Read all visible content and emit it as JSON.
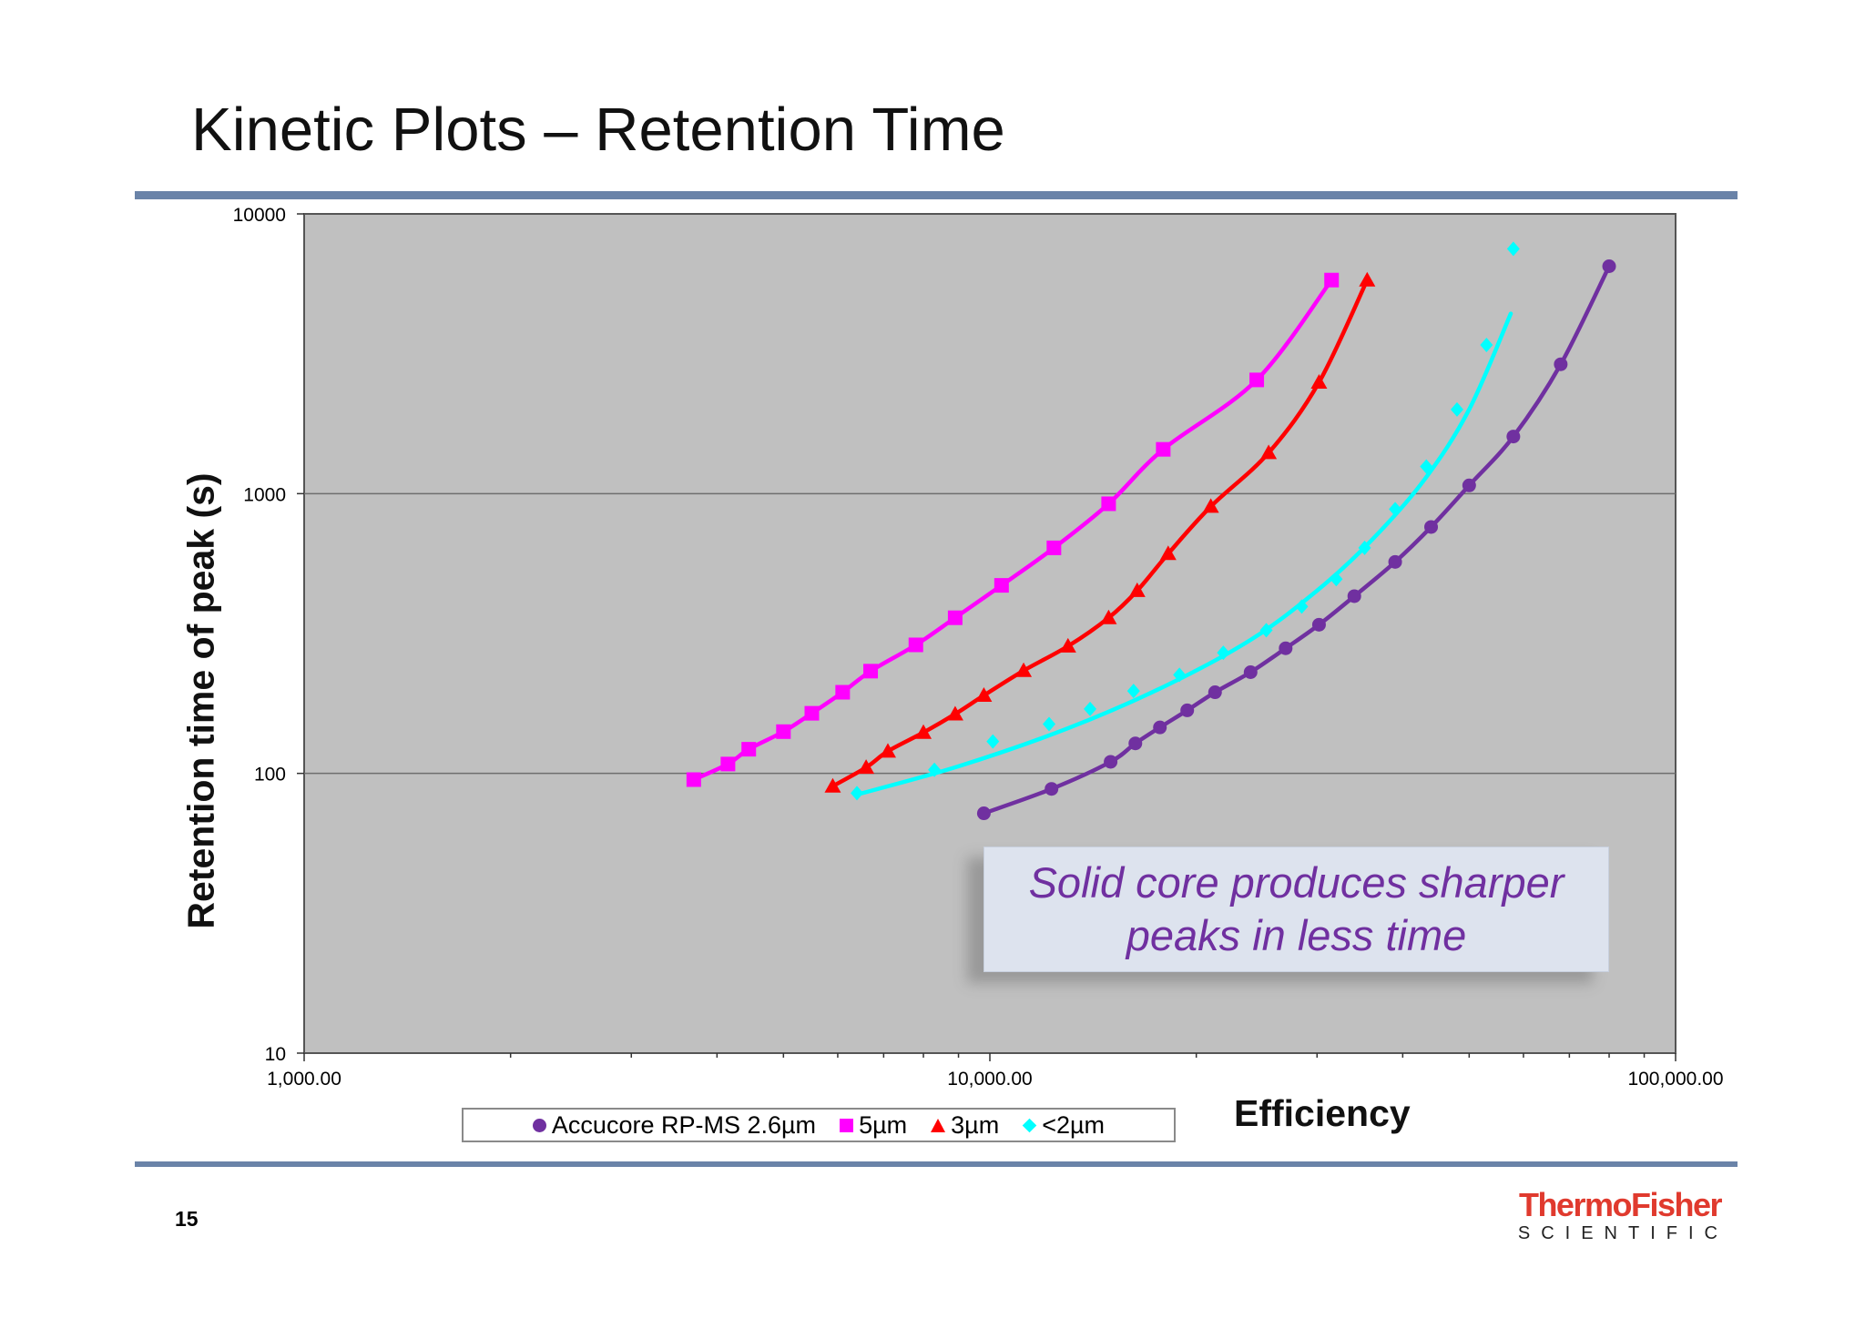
{
  "slide": {
    "title": "Kinetic Plots – Retention Time",
    "page_number": "15",
    "callout": "Solid core produces sharper peaks in less time",
    "logo": {
      "name": "ThermoFisher",
      "sub": "SCIENTIFIC"
    }
  },
  "colors": {
    "rule": "#6a83a8",
    "plot_bg": "#c0c0c0",
    "accucore": "#7030a0",
    "five_um": "#ff00ff",
    "three_um": "#ff0000",
    "sub2_um": "#00ffff",
    "callout_text": "#7030a0",
    "logo_red": "#e03a2e"
  },
  "chart_data": {
    "type": "scatter",
    "xlabel": "Efficiency",
    "ylabel": "Retention time of peak (s)",
    "xscale": "log",
    "yscale": "log",
    "xlim": [
      1000,
      100000
    ],
    "ylim": [
      10,
      10000
    ],
    "xticks": [
      "1,000.00",
      "10,000.00",
      "100,000.00"
    ],
    "yticks": [
      "10",
      "100",
      "1000",
      "10000"
    ],
    "grid": "horizontal major",
    "legend_position": "bottom",
    "series": [
      {
        "name": "Accucore RP-MS 2.6µm",
        "marker": "circle",
        "color": "#7030a0",
        "x": [
          9800,
          12300,
          15000,
          16300,
          17700,
          19400,
          21300,
          24000,
          27000,
          30200,
          34000,
          39000,
          44000,
          50000,
          58000,
          68000,
          80000
        ],
        "y": [
          72,
          88,
          110,
          128,
          146,
          168,
          195,
          230,
          280,
          340,
          430,
          570,
          760,
          1070,
          1600,
          2900,
          6500
        ]
      },
      {
        "name": "5µm",
        "marker": "square",
        "color": "#ff00ff",
        "x": [
          3700,
          4150,
          4450,
          5000,
          5500,
          6100,
          6700,
          7800,
          8900,
          10400,
          12400,
          14900,
          17900,
          24500,
          31500
        ],
        "y": [
          95,
          108,
          122,
          141,
          164,
          195,
          232,
          288,
          360,
          470,
          640,
          920,
          1440,
          2550,
          5800
        ]
      },
      {
        "name": "3µm",
        "marker": "triangle",
        "color": "#ff0000",
        "x": [
          5900,
          6600,
          7100,
          8000,
          8900,
          9800,
          11200,
          13000,
          14900,
          16400,
          18200,
          21000,
          25500,
          30200,
          35500
        ],
        "y": [
          90,
          105,
          120,
          140,
          163,
          190,
          233,
          285,
          360,
          450,
          610,
          900,
          1400,
          2500,
          5800
        ]
      },
      {
        "name": "<2µm",
        "marker": "diamond",
        "color": "#00ffff",
        "x": [
          6400,
          8300,
          10100,
          12200,
          14000,
          16200,
          18900,
          21900,
          25300,
          28500,
          32000,
          35200,
          39000,
          43300,
          48000,
          53000,
          58000
        ],
        "y": [
          85,
          103,
          130,
          150,
          170,
          197,
          225,
          270,
          325,
          395,
          495,
          640,
          880,
          1250,
          2000,
          3400,
          7500
        ]
      }
    ]
  }
}
